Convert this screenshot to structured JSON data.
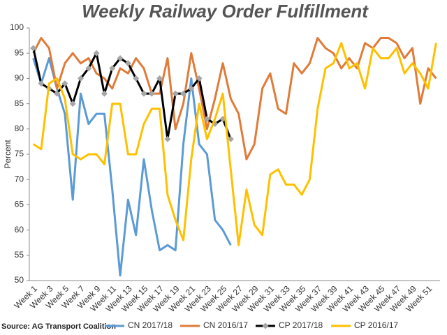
{
  "chart_data": {
    "type": "line",
    "title": "Weekly Railway Order Fulfillment",
    "y_label": "Percent",
    "source": "Source: AG Transport Coalition",
    "categories": [
      "Week 1",
      null,
      "Week 3",
      null,
      "Week 5",
      null,
      "Week 7",
      null,
      "Week 9",
      null,
      "Week 11",
      null,
      "Week 13",
      null,
      "Week 15",
      null,
      "Week 17",
      null,
      "Week 19",
      null,
      "Week 21",
      null,
      "Week 23",
      null,
      "Week 25",
      null,
      "Week 27",
      null,
      "Week 29",
      null,
      "Week 31",
      null,
      "Week 33",
      null,
      "Week 35",
      null,
      "Week 37",
      null,
      "Week 39",
      null,
      "Week 41",
      null,
      "Week 43",
      null,
      "Week 45",
      null,
      "Week 47",
      null,
      "Week 49",
      null,
      "Week 51",
      null
    ],
    "ylim": [
      50,
      100
    ],
    "yticks": [
      50,
      55,
      60,
      65,
      70,
      75,
      80,
      85,
      90,
      95,
      100
    ],
    "grid": false,
    "legend": "bottom",
    "series": [
      {
        "name": "CN 2017/18",
        "color": "#5b9bd5",
        "values": [
          94,
          89,
          94,
          88,
          83,
          66,
          87,
          81,
          83,
          83,
          68,
          51,
          66,
          59,
          74,
          64,
          56,
          57,
          56,
          77,
          90,
          77,
          75,
          62,
          60,
          57,
          null,
          null,
          null,
          null,
          null,
          null,
          null,
          null,
          null,
          null,
          null,
          null,
          null,
          null,
          null,
          null,
          null,
          null,
          null,
          null,
          null,
          null,
          null,
          null,
          null,
          null
        ]
      },
      {
        "name": "CN 2016/17",
        "color": "#e07b39",
        "values": [
          95,
          98,
          96,
          88,
          93,
          95,
          93,
          94,
          91,
          90,
          88,
          92,
          91,
          94,
          92,
          87,
          87,
          94,
          80,
          85,
          95,
          88,
          80,
          86,
          93,
          86,
          83,
          74,
          77,
          88,
          91,
          84,
          83,
          93,
          91,
          93,
          98,
          96,
          95,
          92,
          94,
          92,
          97,
          96,
          98,
          98,
          97,
          94,
          96,
          85,
          92,
          90
        ]
      },
      {
        "name": "CP 2017/18",
        "color": "#000000",
        "marker": "diamond",
        "marker_color": "#a6a6a6",
        "values": [
          96,
          89,
          88,
          87,
          89,
          85,
          90,
          92,
          95,
          87,
          92,
          94,
          93,
          90,
          87,
          87,
          90,
          78,
          87,
          87,
          88,
          90,
          82,
          81,
          82,
          78,
          null,
          null,
          null,
          null,
          null,
          null,
          null,
          null,
          null,
          null,
          null,
          null,
          null,
          null,
          null,
          null,
          null,
          null,
          null,
          null,
          null,
          null,
          null,
          null,
          null,
          null
        ]
      },
      {
        "name": "CP 2016/17",
        "color": "#ffc000",
        "values": [
          77,
          76,
          89,
          90,
          86,
          75,
          74,
          75,
          75,
          73,
          85,
          85,
          75,
          75,
          81,
          84,
          84,
          67,
          62,
          58,
          74,
          85,
          78,
          82,
          87,
          72,
          57,
          68,
          61,
          59,
          71,
          72,
          69,
          69,
          67,
          70,
          84,
          92,
          93,
          97,
          92,
          93,
          88,
          96,
          94,
          94,
          96,
          91,
          93,
          91,
          88,
          97
        ]
      }
    ]
  }
}
